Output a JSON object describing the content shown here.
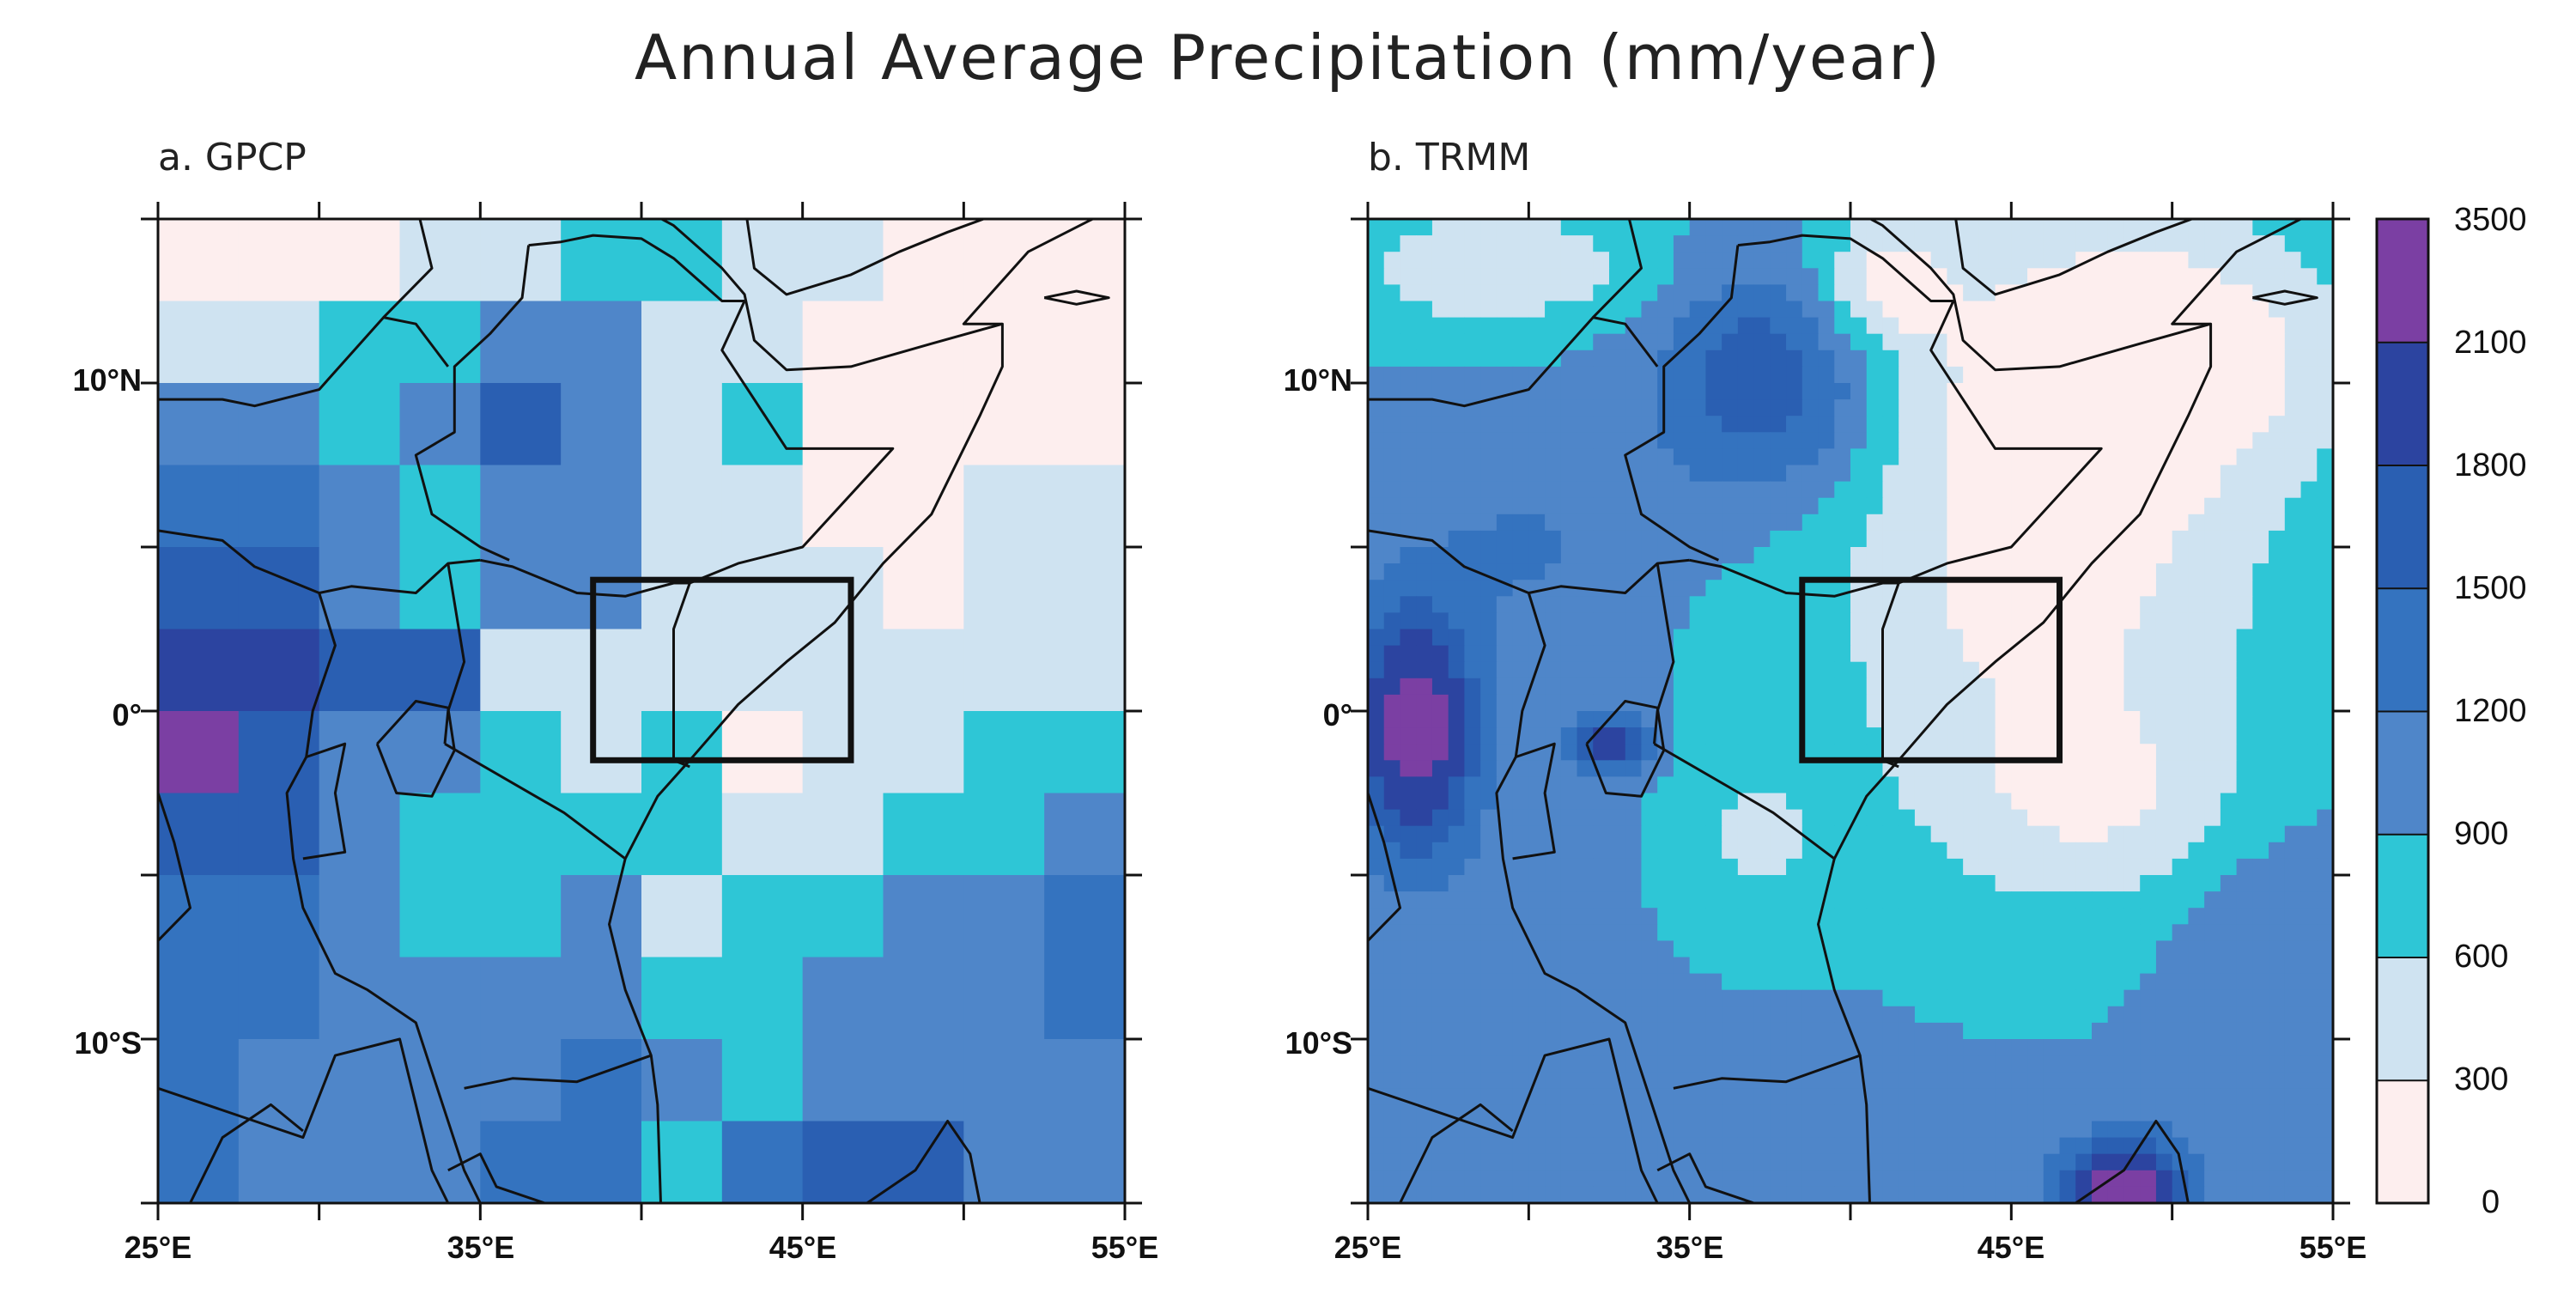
{
  "figure": {
    "title": "Annual Average Precipitation (mm/year)"
  },
  "panels": [
    {
      "id": "gpcp",
      "label": "a. GPCP"
    },
    {
      "id": "trmm",
      "label": "b. TRMM"
    }
  ],
  "axes": {
    "x_ticks": [
      "25°E",
      "35°E",
      "45°E",
      "55°E"
    ],
    "x_values": [
      25,
      35,
      45,
      55
    ],
    "y_ticks": [
      "10°N",
      "0°",
      "10°S"
    ],
    "y_values": [
      10,
      0,
      -10
    ],
    "lon_range": [
      25,
      55
    ],
    "lat_range": [
      -15,
      15
    ]
  },
  "study_box": {
    "lon": [
      38.5,
      46.5
    ],
    "lat": [
      -1.5,
      4
    ]
  },
  "colorbar": {
    "labels": [
      "3500",
      "2100",
      "1800",
      "1500",
      "1200",
      "900",
      "600",
      "300",
      "0"
    ],
    "bins": [
      {
        "range": "0-300",
        "color": "#fdeeee"
      },
      {
        "range": "300-600",
        "color": "#cfe3f1"
      },
      {
        "range": "600-900",
        "color": "#2ec6d6"
      },
      {
        "range": "900-1200",
        "color": "#4f86c9"
      },
      {
        "range": "1200-1500",
        "color": "#3473bf"
      },
      {
        "range": "1500-1800",
        "color": "#2a5fb2"
      },
      {
        "range": "1800-2100",
        "color": "#2c44a0"
      },
      {
        "range": "2100-3500",
        "color": "#7b3fa3"
      }
    ]
  }
}
